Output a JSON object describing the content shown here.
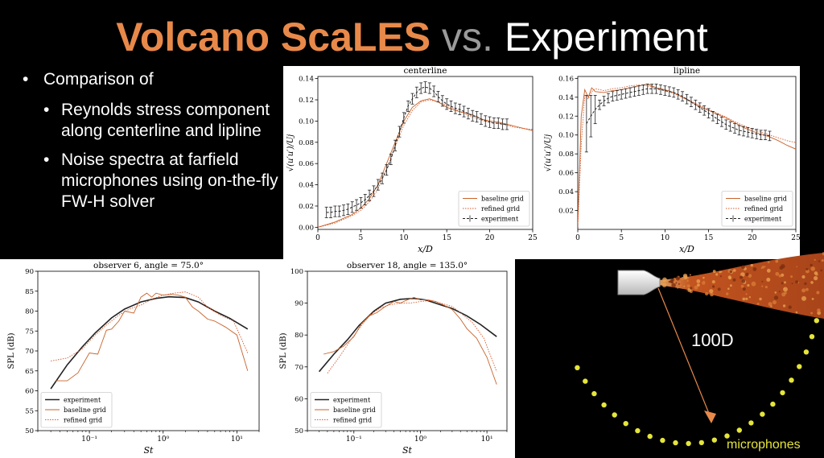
{
  "slide": {
    "title_part1": "Volcano ScaLES",
    "title_part2": "vs.",
    "title_part3": "Experiment",
    "bullet_main": "Comparison of",
    "sub_bullets": [
      "Reynolds stress component along centerline and lipline",
      "Noise spectra at farfield microphones using on-the-fly FW-H solver"
    ],
    "bullet_glyph": "•"
  },
  "diagram": {
    "distance_label": "100D",
    "microphones_label": "microphones",
    "colors": {
      "nozzle": "#dddddd",
      "jet": "#c2541f",
      "mic": "#e5e53a",
      "arrow": "#e8894a"
    }
  },
  "chart_data": [
    {
      "id": "centerline",
      "type": "line",
      "title": "centerline",
      "xlabel": "x/D",
      "ylabel": "√(u′u′)/Uj",
      "xlim": [
        0,
        25
      ],
      "ylim": [
        -0.002,
        0.142
      ],
      "xticks": [
        0,
        5,
        10,
        15,
        20,
        25
      ],
      "xtick_labels": [
        "0",
        "5",
        "10",
        "15",
        "20",
        "25"
      ],
      "yticks": [
        0,
        0.02,
        0.04,
        0.06,
        0.08,
        0.1,
        0.12,
        0.14
      ],
      "ytick_labels": [
        "0.00",
        "0.02",
        "0.04",
        "0.06",
        "0.08",
        "0.10",
        "0.12",
        "0.14"
      ],
      "legend_position": "lower-right",
      "series": [
        {
          "name": "baseline grid",
          "style": "solid",
          "color": "#c8632a",
          "x": [
            0,
            2,
            4,
            5,
            6,
            7,
            8,
            9,
            10,
            11,
            12,
            13,
            14,
            15,
            16,
            17,
            18,
            19,
            20,
            21,
            22,
            23,
            24,
            25
          ],
          "y": [
            0,
            0.005,
            0.012,
            0.018,
            0.027,
            0.04,
            0.06,
            0.08,
            0.1,
            0.113,
            0.119,
            0.121,
            0.118,
            0.113,
            0.11,
            0.108,
            0.106,
            0.102,
            0.1,
            0.099,
            0.097,
            0.095,
            0.093,
            0.091
          ]
        },
        {
          "name": "refined grid",
          "style": "dotted",
          "color": "#d9582b",
          "x": [
            0,
            2,
            4,
            5,
            6,
            7,
            8,
            9,
            10,
            11,
            12,
            13,
            14,
            15,
            16,
            17,
            18,
            19,
            20,
            21,
            22,
            23,
            24,
            25
          ],
          "y": [
            0,
            0.004,
            0.011,
            0.016,
            0.024,
            0.036,
            0.055,
            0.076,
            0.096,
            0.11,
            0.118,
            0.12,
            0.118,
            0.115,
            0.111,
            0.107,
            0.104,
            0.101,
            0.099,
            0.098,
            0.096,
            0.094,
            0.093,
            0.092
          ]
        },
        {
          "name": "experiment",
          "style": "dashed-errorbar",
          "color": "#ffffff",
          "x": [
            1,
            1.5,
            2,
            2.5,
            3,
            3.5,
            4,
            4.5,
            5,
            5.5,
            6,
            6.5,
            7,
            7.5,
            8,
            8.5,
            9,
            9.5,
            10,
            10.5,
            11,
            11.5,
            12,
            12.5,
            13,
            13.5,
            14,
            14.5,
            15,
            15.5,
            16,
            16.5,
            17,
            17.5,
            18,
            18.5,
            19,
            19.5,
            20,
            20.5,
            21,
            21.5,
            22
          ],
          "y": [
            0.014,
            0.014,
            0.015,
            0.015,
            0.016,
            0.017,
            0.019,
            0.021,
            0.023,
            0.026,
            0.03,
            0.034,
            0.04,
            0.046,
            0.054,
            0.064,
            0.077,
            0.09,
            0.103,
            0.114,
            0.121,
            0.127,
            0.131,
            0.132,
            0.131,
            0.128,
            0.123,
            0.119,
            0.116,
            0.114,
            0.112,
            0.111,
            0.109,
            0.107,
            0.105,
            0.104,
            0.102,
            0.1,
            0.099,
            0.098,
            0.098,
            0.097,
            0.097
          ],
          "err": 0.005
        }
      ]
    },
    {
      "id": "lipline",
      "type": "line",
      "title": "lipline",
      "xlabel": "x/D",
      "ylabel": "√(u′u′)/Uj",
      "xlim": [
        0,
        25
      ],
      "ylim": [
        0,
        0.162
      ],
      "xticks": [
        0,
        5,
        10,
        15,
        20,
        25
      ],
      "xtick_labels": [
        "0",
        "5",
        "10",
        "15",
        "20",
        "25"
      ],
      "yticks": [
        0.02,
        0.04,
        0.06,
        0.08,
        0.1,
        0.12,
        0.14,
        0.16
      ],
      "ytick_labels": [
        "0.02",
        "0.04",
        "0.06",
        "0.08",
        "0.10",
        "0.12",
        "0.14",
        "0.16"
      ],
      "legend_position": "lower-right",
      "series": [
        {
          "name": "baseline grid",
          "style": "solid",
          "color": "#c8632a",
          "x": [
            0,
            0.4,
            0.8,
            1.2,
            1.6,
            2,
            3,
            4,
            5,
            6,
            7,
            8,
            9,
            10,
            11,
            12,
            13,
            14,
            15,
            16,
            17,
            18,
            19,
            20,
            21,
            22,
            23,
            24,
            25
          ],
          "y": [
            0.005,
            0.12,
            0.148,
            0.14,
            0.15,
            0.146,
            0.145,
            0.147,
            0.148,
            0.15,
            0.152,
            0.154,
            0.15,
            0.148,
            0.145,
            0.14,
            0.135,
            0.13,
            0.126,
            0.122,
            0.118,
            0.113,
            0.108,
            0.104,
            0.101,
            0.098,
            0.094,
            0.089,
            0.085
          ]
        },
        {
          "name": "refined grid",
          "style": "dotted",
          "color": "#d9582b",
          "x": [
            0,
            0.4,
            0.8,
            1.2,
            1.6,
            2,
            3,
            4,
            5,
            6,
            7,
            8,
            9,
            10,
            11,
            12,
            13,
            14,
            15,
            16,
            17,
            18,
            19,
            20,
            21,
            22,
            23,
            24,
            25
          ],
          "y": [
            0.003,
            0.09,
            0.142,
            0.138,
            0.146,
            0.149,
            0.147,
            0.149,
            0.15,
            0.152,
            0.153,
            0.152,
            0.15,
            0.147,
            0.144,
            0.14,
            0.136,
            0.131,
            0.127,
            0.123,
            0.119,
            0.114,
            0.11,
            0.106,
            0.103,
            0.1,
            0.097,
            0.094,
            0.092
          ]
        },
        {
          "name": "experiment",
          "style": "dashed-errorbar",
          "color": "#ffffff",
          "x": [
            1,
            1.5,
            2,
            2.5,
            3,
            3.5,
            4,
            4.5,
            5,
            5.5,
            6,
            6.5,
            7,
            7.5,
            8,
            8.5,
            9,
            9.5,
            10,
            10.5,
            11,
            11.5,
            12,
            12.5,
            13,
            13.5,
            14,
            14.5,
            15,
            15.5,
            16,
            16.5,
            17,
            17.5,
            18,
            18.5,
            19,
            19.5,
            20,
            20.5,
            21,
            21.5,
            22
          ],
          "y": [
            0.112,
            0.12,
            0.127,
            0.132,
            0.136,
            0.139,
            0.141,
            0.142,
            0.143,
            0.144,
            0.145,
            0.146,
            0.147,
            0.148,
            0.149,
            0.149,
            0.149,
            0.148,
            0.147,
            0.146,
            0.145,
            0.143,
            0.141,
            0.138,
            0.135,
            0.132,
            0.129,
            0.126,
            0.123,
            0.12,
            0.117,
            0.114,
            0.111,
            0.109,
            0.107,
            0.105,
            0.104,
            0.103,
            0.102,
            0.101,
            0.1,
            0.1,
            0.099
          ],
          "err": 0.005,
          "big_err_points": [
            {
              "x": 1,
              "err": 0.03
            },
            {
              "x": 1.5,
              "err": 0.022
            },
            {
              "x": 2,
              "err": 0.015
            }
          ]
        }
      ]
    },
    {
      "id": "obs6",
      "type": "line",
      "title": "observer 6,  angle = 75.0°",
      "xlabel": "St",
      "ylabel": "SPL (dB)",
      "xscale": "log",
      "xlim": [
        0.02,
        20
      ],
      "ylim": [
        50,
        90
      ],
      "xticks": [
        0.1,
        1,
        10
      ],
      "xtick_labels": [
        "10⁻¹",
        "10⁰",
        "10¹"
      ],
      "yticks": [
        50,
        55,
        60,
        65,
        70,
        75,
        80,
        85,
        90
      ],
      "ytick_labels": [
        "50",
        "55",
        "60",
        "65",
        "70",
        "75",
        "80",
        "85",
        "90"
      ],
      "legend_position": "lower-left",
      "series": [
        {
          "name": "experiment",
          "style": "solid",
          "color": "#ffffff",
          "x": [
            0.03,
            0.05,
            0.08,
            0.12,
            0.2,
            0.3,
            0.5,
            0.8,
            1.2,
            2,
            3,
            5,
            8,
            14
          ],
          "y": [
            60.5,
            66.5,
            71,
            74.5,
            78.3,
            80.5,
            82.3,
            83.2,
            83.6,
            83.4,
            82.3,
            80,
            78.2,
            75.5
          ]
        },
        {
          "name": "baseline grid",
          "style": "solid",
          "color": "#c8632a",
          "x": [
            0.035,
            0.05,
            0.07,
            0.1,
            0.13,
            0.17,
            0.2,
            0.25,
            0.3,
            0.4,
            0.5,
            0.6,
            0.7,
            0.8,
            1,
            1.3,
            1.6,
            2,
            2.5,
            3,
            4,
            5,
            7,
            10,
            14
          ],
          "y": [
            62.5,
            62.5,
            64.5,
            69.5,
            69.2,
            75.2,
            75.5,
            77.5,
            80,
            79.5,
            83.5,
            84.5,
            83.5,
            84.5,
            84,
            84.2,
            84,
            83.5,
            81,
            80,
            78,
            77.5,
            76,
            74,
            65
          ]
        },
        {
          "name": "refined grid",
          "style": "dotted",
          "color": "#d9582b",
          "x": [
            0.03,
            0.05,
            0.08,
            0.12,
            0.17,
            0.25,
            0.35,
            0.5,
            0.7,
            1,
            1.4,
            2,
            3,
            4,
            6,
            9,
            14
          ],
          "y": [
            67.5,
            68.2,
            70.5,
            74,
            76.5,
            79,
            80.5,
            81.5,
            83,
            84,
            84.5,
            84.8,
            83.5,
            81,
            79,
            77.5,
            69.5
          ]
        }
      ]
    },
    {
      "id": "obs18",
      "type": "line",
      "title": "observer 18,  angle = 135.0°",
      "xlabel": "St",
      "ylabel": "SPL (dB)",
      "xscale": "log",
      "xlim": [
        0.02,
        20
      ],
      "ylim": [
        50,
        100
      ],
      "xticks": [
        0.1,
        1,
        10
      ],
      "xtick_labels": [
        "10⁻¹",
        "10⁰",
        "10¹"
      ],
      "yticks": [
        50,
        60,
        70,
        80,
        90,
        100
      ],
      "ytick_labels": [
        "50",
        "60",
        "70",
        "80",
        "90",
        "100"
      ],
      "legend_position": "lower-left",
      "series": [
        {
          "name": "experiment",
          "style": "solid",
          "color": "#ffffff",
          "x": [
            0.03,
            0.05,
            0.08,
            0.12,
            0.2,
            0.3,
            0.5,
            0.8,
            1.2,
            2,
            3,
            5,
            8,
            14
          ],
          "y": [
            68.5,
            74,
            78.5,
            83,
            87.5,
            90,
            91.2,
            91.5,
            91,
            89.5,
            88.3,
            86,
            83.3,
            79.5
          ]
        },
        {
          "name": "baseline grid",
          "style": "solid",
          "color": "#c8632a",
          "x": [
            0.035,
            0.05,
            0.07,
            0.1,
            0.13,
            0.17,
            0.22,
            0.3,
            0.4,
            0.5,
            0.6,
            0.8,
            1,
            1.3,
            1.7,
            2.2,
            3,
            4,
            5,
            7,
            10,
            14
          ],
          "y": [
            74,
            74.8,
            76.5,
            79.5,
            83.5,
            86,
            87,
            89,
            90.5,
            90,
            90.8,
            91.8,
            91,
            91,
            90.5,
            89.5,
            88,
            85,
            82,
            79,
            73,
            64.5
          ]
        },
        {
          "name": "refined grid",
          "style": "dotted",
          "color": "#d9582b",
          "x": [
            0.04,
            0.06,
            0.09,
            0.13,
            0.18,
            0.25,
            0.35,
            0.5,
            0.7,
            1,
            1.4,
            2,
            3,
            4,
            6,
            9,
            14
          ],
          "y": [
            68,
            73,
            78.5,
            83,
            86.5,
            88.5,
            89.5,
            90,
            90,
            90.5,
            90.8,
            90,
            89,
            87,
            84,
            79,
            68.5
          ]
        }
      ]
    }
  ]
}
